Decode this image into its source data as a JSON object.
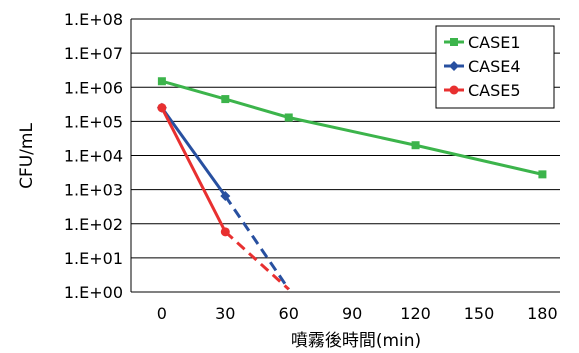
{
  "chart_data": {
    "type": "line",
    "title": "",
    "xlabel": "噴霧後時間(min)",
    "ylabel": "CFU/mL",
    "x_ticks": [
      "0",
      "30",
      "60",
      "90",
      "120",
      "150",
      "180"
    ],
    "y_ticks": [
      "1.E+00",
      "1.E+01",
      "1.E+02",
      "1.E+03",
      "1.E+04",
      "1.E+05",
      "1.E+06",
      "1.E+07",
      "1.E+08"
    ],
    "xlim": [
      0,
      180
    ],
    "ylim": [
      1,
      100000000
    ],
    "y_scale": "log",
    "grid": "horizontal",
    "legend_position": "top-right",
    "series": [
      {
        "name": "CASE1",
        "color": "#3cb44b",
        "marker": "square",
        "points": [
          {
            "x": 0,
            "y": 1500000
          },
          {
            "x": 30,
            "y": 450000
          },
          {
            "x": 60,
            "y": 130000
          },
          {
            "x": 120,
            "y": 20000
          },
          {
            "x": 180,
            "y": 2800
          }
        ],
        "dashed_extension": []
      },
      {
        "name": "CASE4",
        "color": "#2850a0",
        "marker": "diamond",
        "points": [
          {
            "x": 0,
            "y": 250000
          },
          {
            "x": 30,
            "y": 650
          }
        ],
        "dashed_extension": [
          {
            "x": 30,
            "y": 650
          },
          {
            "x": 60,
            "y": 1.2
          }
        ]
      },
      {
        "name": "CASE5",
        "color": "#e83030",
        "marker": "circle",
        "points": [
          {
            "x": 0,
            "y": 250000
          },
          {
            "x": 30,
            "y": 58
          }
        ],
        "dashed_extension": [
          {
            "x": 30,
            "y": 58
          },
          {
            "x": 60,
            "y": 1.2
          }
        ]
      }
    ]
  }
}
